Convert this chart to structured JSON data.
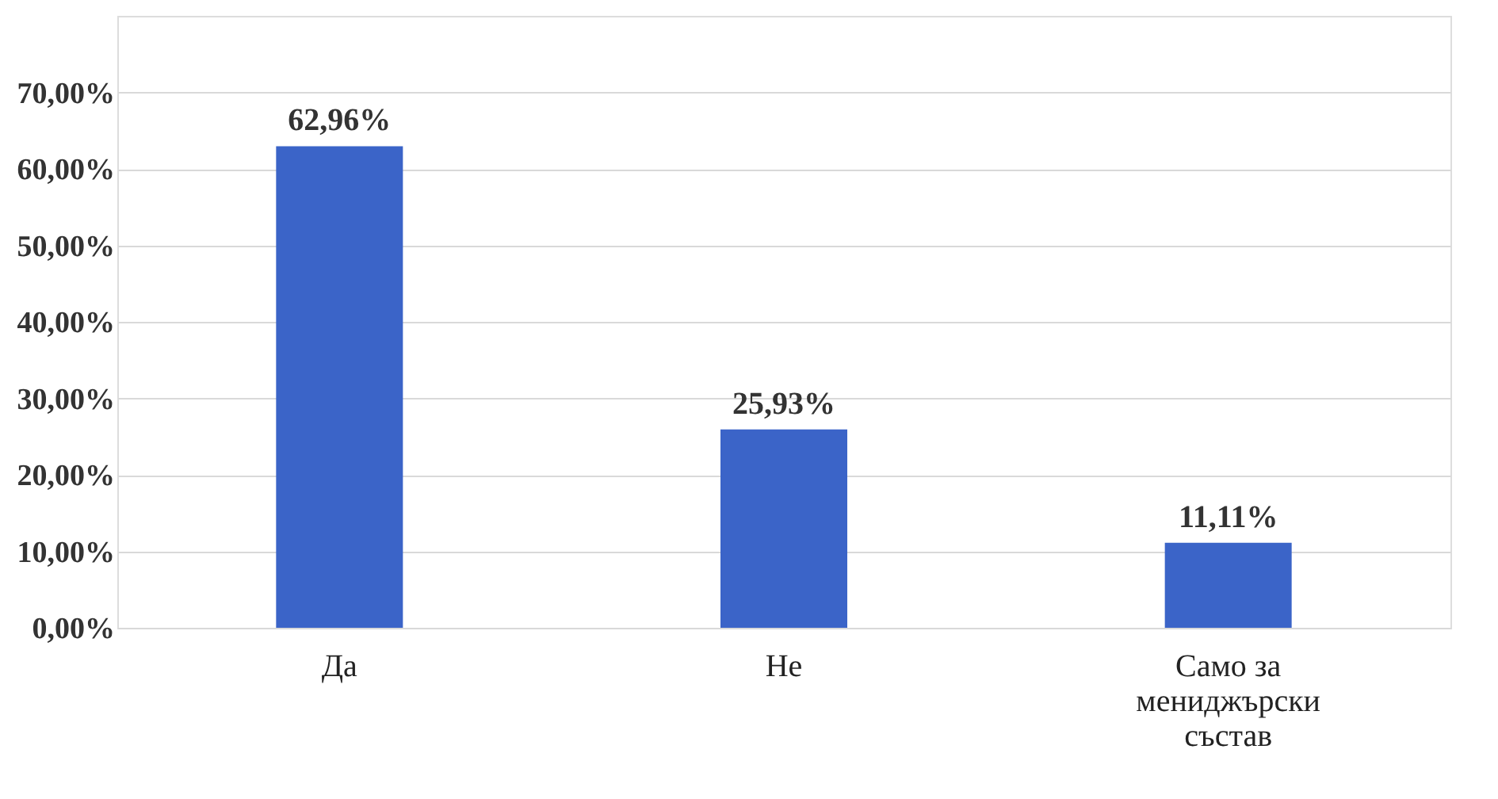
{
  "chart_data": {
    "type": "bar",
    "categories": [
      "Да",
      "Не",
      "Само за мениджърски състав"
    ],
    "values": [
      62.96,
      25.93,
      11.11
    ],
    "value_labels": [
      "62,96%",
      "25,93%",
      "11,11%"
    ],
    "color": "#3b64c8",
    "ylim": [
      0,
      80
    ],
    "yticks": [
      {
        "value": 0,
        "label": "0,00%"
      },
      {
        "value": 10,
        "label": "10,00%"
      },
      {
        "value": 20,
        "label": "20,00%"
      },
      {
        "value": 30,
        "label": "30,00%"
      },
      {
        "value": 40,
        "label": "40,00%"
      },
      {
        "value": 50,
        "label": "50,00%"
      },
      {
        "value": 60,
        "label": "60,00%"
      },
      {
        "value": 70,
        "label": "70,00%"
      }
    ],
    "grid": "y"
  }
}
